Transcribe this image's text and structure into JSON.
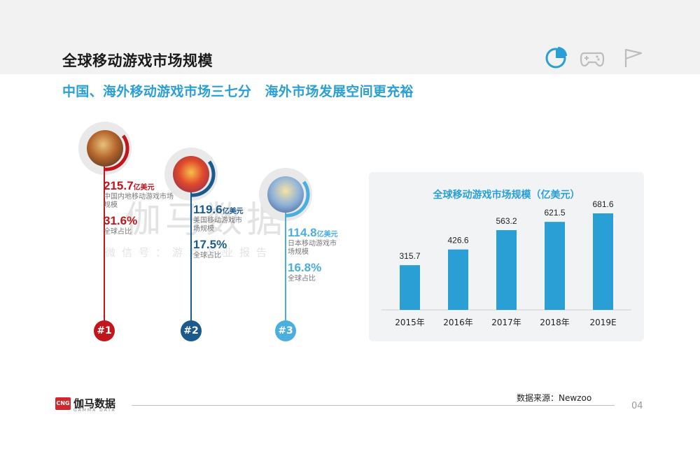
{
  "header": {
    "title": "全球移动游戏市场规模",
    "icons": [
      "pie-chart-icon",
      "gamepad-icon",
      "flag-icon"
    ],
    "accent": "#2a9fd6"
  },
  "subtitle": "中国、海外移动游戏市场三七分　海外市场发展空间更充裕",
  "watermark": {
    "brand": "伽马数据",
    "tagline": "微信号：游戏产业报告"
  },
  "rankings": [
    {
      "rank": "#1",
      "value": "215.7",
      "unit": "亿美元",
      "desc": "中国内地移动游戏市场规模",
      "share": "31.6%",
      "share_label": "全球占比",
      "color": "#c0161c"
    },
    {
      "rank": "#2",
      "value": "119.6",
      "unit": "亿美元",
      "desc": "美国移动游戏市场规模",
      "share": "17.5%",
      "share_label": "全球占比",
      "color": "#1b5a8c"
    },
    {
      "rank": "#3",
      "value": "114.8",
      "unit": "亿美元",
      "desc": "日本移动游戏市场规模",
      "share": "16.8%",
      "share_label": "全球占比",
      "color": "#4aaede"
    }
  ],
  "chart_data": {
    "type": "bar",
    "title": "全球移动游戏市场规模（亿美元）",
    "categories": [
      "2015年",
      "2016年",
      "2017年",
      "2018年",
      "2019E"
    ],
    "values": [
      315.7,
      426.6,
      563.2,
      621.5,
      681.6
    ],
    "value_labels": [
      "315.7",
      "426.6",
      "563.2",
      "621.5",
      "681.6"
    ],
    "ylim": [
      0,
      720
    ],
    "grid": false,
    "bar_color": "#2a9fd6"
  },
  "footer": {
    "logo_mark": "CNG",
    "logo_text": "伽马数据",
    "logo_sub": "GAMMA DATA",
    "source": "数据来源：Newzoo",
    "page": "04"
  }
}
